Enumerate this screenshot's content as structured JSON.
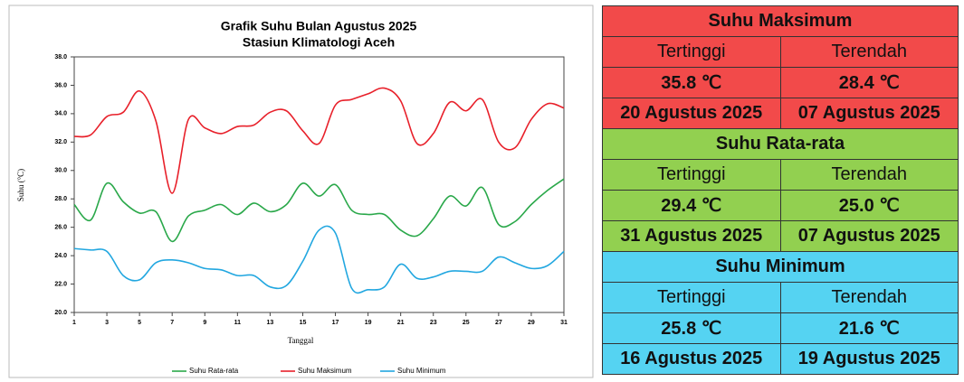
{
  "chart_data": {
    "type": "line",
    "title": "Grafik Suhu Bulan Agustus 2025",
    "subtitle": "Stasiun Klimatologi Aceh",
    "x_label": "Tanggal",
    "y_label": "Suhu (°C)",
    "x": [
      1,
      2,
      3,
      4,
      5,
      6,
      7,
      8,
      9,
      10,
      11,
      12,
      13,
      14,
      15,
      16,
      17,
      18,
      19,
      20,
      21,
      22,
      23,
      24,
      25,
      26,
      27,
      28,
      29,
      30,
      31
    ],
    "xlim": [
      1,
      31
    ],
    "xticks": [
      1,
      3,
      5,
      7,
      9,
      11,
      13,
      15,
      17,
      19,
      21,
      23,
      25,
      27,
      29,
      31
    ],
    "ylim": [
      20,
      38
    ],
    "yticks": [
      {
        "value": 20,
        "label": "20.0"
      },
      {
        "value": 22,
        "label": "22.0"
      },
      {
        "value": 24,
        "label": "24.0"
      },
      {
        "value": 26,
        "label": "26.0"
      },
      {
        "value": 28,
        "label": "28.0"
      },
      {
        "value": 30,
        "label": "30.0"
      },
      {
        "value": 32,
        "label": "32.0"
      },
      {
        "value": 34,
        "label": "34.0"
      },
      {
        "value": 36,
        "label": "36.0"
      },
      {
        "value": 38,
        "label": "38.0"
      }
    ],
    "series": [
      {
        "name": "Suhu Rata-rata",
        "color": "#2aa84a",
        "values": [
          27.6,
          26.5,
          29.1,
          27.8,
          27.0,
          27.1,
          25.0,
          26.8,
          27.2,
          27.6,
          26.9,
          27.7,
          27.1,
          27.6,
          29.1,
          28.2,
          29.0,
          27.2,
          26.9,
          26.9,
          25.8,
          25.4,
          26.6,
          28.2,
          27.5,
          28.8,
          26.2,
          26.4,
          27.6,
          28.6,
          29.4
        ]
      },
      {
        "name": "Suhu Maksimum",
        "color": "#e8202a",
        "values": [
          32.4,
          32.5,
          33.8,
          34.1,
          35.6,
          33.5,
          28.4,
          33.6,
          33.0,
          32.6,
          33.1,
          33.2,
          34.1,
          34.2,
          32.8,
          31.9,
          34.6,
          35.0,
          35.4,
          35.8,
          34.9,
          31.9,
          32.6,
          34.8,
          34.2,
          35.0,
          32.0,
          31.6,
          33.6,
          34.7,
          34.4
        ]
      },
      {
        "name": "Suhu Minimum",
        "color": "#22a7e0",
        "values": [
          24.5,
          24.4,
          24.3,
          22.6,
          22.3,
          23.5,
          23.7,
          23.5,
          23.1,
          23.0,
          22.6,
          22.6,
          21.8,
          21.9,
          23.6,
          25.8,
          25.6,
          21.7,
          21.6,
          21.8,
          23.4,
          22.4,
          22.5,
          22.9,
          22.9,
          22.9,
          23.9,
          23.5,
          23.1,
          23.3,
          24.3
        ]
      }
    ],
    "legend": "bottom"
  },
  "summary": [
    {
      "title": "Suhu Maksimum",
      "color": "#f24a4a",
      "headers": [
        "Tertinggi",
        "Terendah"
      ],
      "values": [
        "35.8 ℃",
        "28.4 ℃"
      ],
      "dates": [
        "20 Agustus 2025",
        "07 Agustus 2025"
      ]
    },
    {
      "title": "Suhu Rata-rata",
      "color": "#92d050",
      "headers": [
        "Tertinggi",
        "Terendah"
      ],
      "values": [
        "29.4 ℃",
        "25.0 ℃"
      ],
      "dates": [
        "31 Agustus 2025",
        "07 Agustus 2025"
      ]
    },
    {
      "title": "Suhu Minimum",
      "color": "#55d3f2",
      "headers": [
        "Tertinggi",
        "Terendah"
      ],
      "values": [
        "25.8 ℃",
        "21.6 ℃"
      ],
      "dates": [
        "16 Agustus 2025",
        "19 Agustus 2025"
      ]
    }
  ]
}
